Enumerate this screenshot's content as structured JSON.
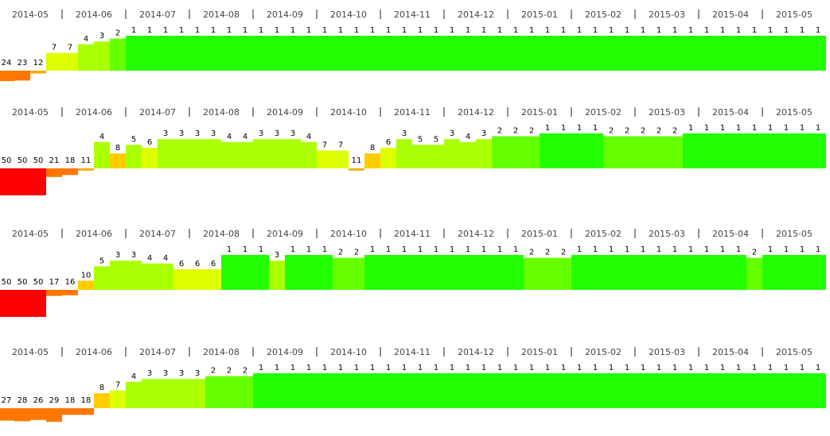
{
  "chart_data": [
    {
      "type": "bar",
      "months": [
        "2014-05",
        "2014-06",
        "2014-07",
        "2014-08",
        "2014-09",
        "2014-10",
        "2014-11",
        "2014-12",
        "2015-01",
        "2015-02",
        "2015-03",
        "2015-04",
        "2015-05"
      ],
      "values": [
        24,
        23,
        12,
        7,
        7,
        4,
        3,
        2,
        1,
        1,
        1,
        1,
        1,
        1,
        1,
        1,
        1,
        1,
        1,
        1,
        1,
        1,
        1,
        1,
        1,
        1,
        1,
        1,
        1,
        1,
        1,
        1,
        1,
        1,
        1,
        1,
        1,
        1,
        1,
        1,
        1,
        1,
        1,
        1,
        1,
        1,
        1,
        1,
        1,
        1,
        1,
        1
      ]
    },
    {
      "type": "bar",
      "months": [
        "2014-05",
        "2014-06",
        "2014-07",
        "2014-08",
        "2014-09",
        "2014-10",
        "2014-11",
        "2014-12",
        "2015-01",
        "2015-02",
        "2015-03",
        "2015-04",
        "2015-05"
      ],
      "values": [
        50,
        50,
        50,
        21,
        18,
        11,
        4,
        8,
        5,
        6,
        3,
        3,
        3,
        3,
        4,
        4,
        3,
        3,
        3,
        4,
        7,
        7,
        11,
        8,
        6,
        3,
        5,
        5,
        3,
        4,
        3,
        2,
        2,
        2,
        1,
        1,
        1,
        1,
        2,
        2,
        2,
        2,
        2,
        1,
        1,
        1,
        1,
        1,
        1,
        1,
        1,
        1
      ]
    },
    {
      "type": "bar",
      "months": [
        "2014-05",
        "2014-06",
        "2014-07",
        "2014-08",
        "2014-09",
        "2014-10",
        "2014-11",
        "2014-12",
        "2015-01",
        "2015-02",
        "2015-03",
        "2015-04",
        "2015-05"
      ],
      "values": [
        50,
        50,
        50,
        17,
        16,
        10,
        5,
        3,
        3,
        4,
        4,
        6,
        6,
        6,
        1,
        1,
        1,
        3,
        1,
        1,
        1,
        2,
        2,
        1,
        1,
        1,
        1,
        1,
        1,
        1,
        1,
        1,
        1,
        2,
        2,
        2,
        1,
        1,
        1,
        1,
        1,
        1,
        1,
        1,
        1,
        1,
        1,
        2,
        1,
        1,
        1,
        1
      ]
    },
    {
      "type": "bar",
      "months": [
        "2014-05",
        "2014-06",
        "2014-07",
        "2014-08",
        "2014-09",
        "2014-10",
        "2014-11",
        "2014-12",
        "2015-01",
        "2015-02",
        "2015-03",
        "2015-04",
        "2015-05"
      ],
      "values": [
        27,
        28,
        26,
        29,
        18,
        18,
        8,
        7,
        4,
        3,
        3,
        3,
        3,
        2,
        2,
        2,
        1,
        1,
        1,
        1,
        1,
        1,
        1,
        1,
        1,
        1,
        1,
        1,
        1,
        1,
        1,
        1,
        1,
        1,
        1,
        1,
        1,
        1,
        1,
        1,
        1,
        1,
        1,
        1,
        1,
        1,
        1,
        1,
        1,
        1,
        1,
        1
      ]
    }
  ],
  "color_scale": {
    "rank_1": "#22ff00",
    "rank_2": "#66ff00",
    "rank_3_5": "#aaff00",
    "rank_6_7": "#ddff00",
    "rank_8_10": "#ffcc00",
    "rank_11_15": "#ffaa00",
    "rank_16_30": "#ff7700",
    "rank_31_plus": "#ff0000"
  }
}
